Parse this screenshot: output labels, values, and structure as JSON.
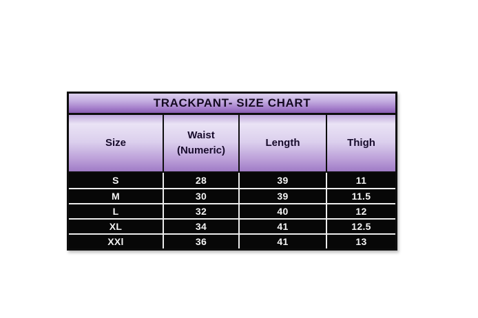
{
  "page": {
    "background_color": "#ffffff"
  },
  "chart_data": {
    "type": "table",
    "title": "TRACKPANT- SIZE CHART",
    "columns": [
      "Size",
      "Waist\n(Numeric)",
      "Length",
      "Thigh"
    ],
    "rows": [
      [
        "S",
        "28",
        "39",
        "11"
      ],
      [
        "M",
        "30",
        "39",
        "11.5"
      ],
      [
        "L",
        "32",
        "40",
        "12"
      ],
      [
        "XL",
        "34",
        "41",
        "12.5"
      ],
      [
        "XXl",
        "36",
        "41",
        "13"
      ]
    ]
  },
  "style_tokens": {
    "title_gradient_top": "#ddd1ef",
    "title_gradient_bottom": "#8a5fb2",
    "header_gradient_light": "#eae3f5",
    "header_gradient_dark": "#a07cc6",
    "data_row_background": "#070707",
    "data_text_color": "#f4f4f4",
    "table_border_color": "#0d0d0d",
    "data_divider_color": "#ededed"
  }
}
